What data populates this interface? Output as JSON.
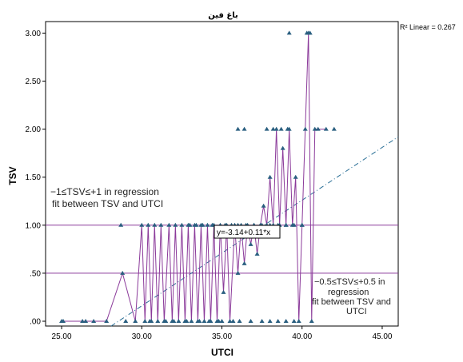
{
  "chart_data": {
    "type": "line",
    "title": "باغ فين",
    "xlabel": "UTCI",
    "ylabel": "TSV",
    "xlim": [
      24.0,
      46.0
    ],
    "ylim": [
      -0.05,
      3.12
    ],
    "x_ticks": [
      "25.00",
      "30.00",
      "35.00",
      "40.00",
      "45.00"
    ],
    "y_ticks": [
      ".00",
      ".50",
      "1.00",
      "1.50",
      "2.00",
      "2.50",
      "3.00"
    ],
    "grid": false,
    "r2_label": "R² Linear = 0.267",
    "fit": {
      "intercept": -3.14,
      "slope": 0.11,
      "label": "y=-3.14+0.11*x",
      "color": "#2a6f96"
    },
    "reference_lines": [
      {
        "y": 1.0,
        "color": "#8b3a9a"
      },
      {
        "y": 0.5,
        "color": "#8b3a9a"
      }
    ],
    "annotations": [
      {
        "lines": [
          "−1≤TSV≤+1 in regression",
          "fit between TSV and UTCI"
        ]
      },
      {
        "lines": [
          "−0.5≤TSV≤+0.5 in",
          "regression",
          "fit between TSV and",
          "UTCI"
        ]
      }
    ],
    "series": [
      {
        "line_color": "#8b3a9a",
        "marker_color": "#2a5f80",
        "points": [
          [
            25.1,
            0
          ],
          [
            26.3,
            0
          ],
          [
            27.8,
            0
          ],
          [
            28.8,
            0.5
          ],
          [
            29.6,
            0
          ],
          [
            30.0,
            1
          ],
          [
            30.2,
            0
          ],
          [
            30.4,
            1
          ],
          [
            30.6,
            0
          ],
          [
            30.8,
            1
          ],
          [
            31.0,
            0
          ],
          [
            31.2,
            1
          ],
          [
            31.4,
            0
          ],
          [
            31.7,
            1
          ],
          [
            31.9,
            0
          ],
          [
            32.1,
            1
          ],
          [
            32.3,
            0
          ],
          [
            32.5,
            1
          ],
          [
            32.7,
            0
          ],
          [
            32.9,
            1
          ],
          [
            33.1,
            0
          ],
          [
            33.3,
            1
          ],
          [
            33.5,
            0
          ],
          [
            33.7,
            1
          ],
          [
            33.9,
            0
          ],
          [
            34.1,
            1
          ],
          [
            34.3,
            0
          ],
          [
            34.5,
            1
          ],
          [
            34.7,
            0
          ],
          [
            34.9,
            1
          ],
          [
            35.1,
            0.3
          ],
          [
            35.3,
            1
          ],
          [
            35.5,
            0
          ],
          [
            35.8,
            1
          ],
          [
            36.0,
            0.5
          ],
          [
            36.2,
            1
          ],
          [
            36.4,
            0.6
          ],
          [
            36.6,
            1
          ],
          [
            36.8,
            0.8
          ],
          [
            37.0,
            1
          ],
          [
            37.2,
            0.7
          ],
          [
            37.4,
            1
          ],
          [
            37.6,
            1.2
          ],
          [
            37.8,
            1
          ],
          [
            38.0,
            1.5
          ],
          [
            38.2,
            1
          ],
          [
            38.4,
            2
          ],
          [
            38.6,
            1
          ],
          [
            38.8,
            1.8
          ],
          [
            39.0,
            1
          ],
          [
            39.2,
            2
          ],
          [
            39.4,
            1
          ],
          [
            39.6,
            1.5
          ],
          [
            39.8,
            0
          ],
          [
            40.0,
            1
          ],
          [
            40.2,
            2
          ],
          [
            40.4,
            3
          ],
          [
            40.6,
            0
          ],
          [
            40.8,
            2
          ],
          [
            41.0,
            2
          ],
          [
            41.5,
            2
          ]
        ]
      }
    ],
    "extra_markers": [
      [
        25.0,
        0
      ],
      [
        26.5,
        0
      ],
      [
        27.0,
        0
      ],
      [
        28.7,
        1
      ],
      [
        29.0,
        0
      ],
      [
        30.5,
        0
      ],
      [
        31.5,
        0
      ],
      [
        32.0,
        0
      ],
      [
        32.8,
        0
      ],
      [
        33.6,
        0
      ],
      [
        34.2,
        0
      ],
      [
        34.8,
        0
      ],
      [
        35.0,
        0
      ],
      [
        35.7,
        0
      ],
      [
        36.1,
        0
      ],
      [
        36.8,
        0
      ],
      [
        37.5,
        0
      ],
      [
        38.0,
        0
      ],
      [
        38.5,
        0
      ],
      [
        39.0,
        0
      ],
      [
        39.5,
        0
      ],
      [
        33.0,
        1
      ],
      [
        33.4,
        1
      ],
      [
        33.8,
        1
      ],
      [
        34.4,
        1
      ],
      [
        35.2,
        1
      ],
      [
        35.6,
        1
      ],
      [
        36.0,
        1
      ],
      [
        36.5,
        1
      ],
      [
        37.0,
        1
      ],
      [
        37.5,
        1
      ],
      [
        38.0,
        1
      ],
      [
        38.5,
        1
      ],
      [
        39.0,
        1
      ],
      [
        39.5,
        1
      ],
      [
        40.0,
        1
      ],
      [
        36.0,
        2
      ],
      [
        36.4,
        2
      ],
      [
        37.8,
        2
      ],
      [
        38.2,
        2
      ],
      [
        38.7,
        2
      ],
      [
        39.1,
        2
      ],
      [
        39.2,
        3
      ],
      [
        40.3,
        3
      ],
      [
        40.5,
        3
      ],
      [
        42.0,
        2
      ]
    ]
  }
}
